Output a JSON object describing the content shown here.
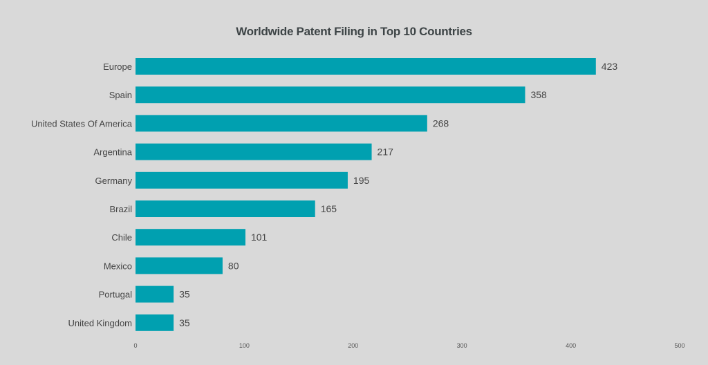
{
  "chart_data": {
    "type": "bar",
    "orientation": "horizontal",
    "title": "Worldwide Patent Filing in Top 10 Countries",
    "categories": [
      "Europe",
      "Spain",
      "United States Of America",
      "Argentina",
      "Germany",
      "Brazil",
      "Chile",
      "Mexico",
      "Portugal",
      "United Kingdom"
    ],
    "values": [
      423,
      358,
      268,
      217,
      195,
      165,
      101,
      80,
      35,
      35
    ],
    "xlim": [
      0,
      500
    ],
    "xticks": [
      "0",
      "100",
      "200",
      "300",
      "400",
      "500"
    ],
    "grid": false,
    "data_labels": true,
    "bar_color": "#00a0b0"
  }
}
